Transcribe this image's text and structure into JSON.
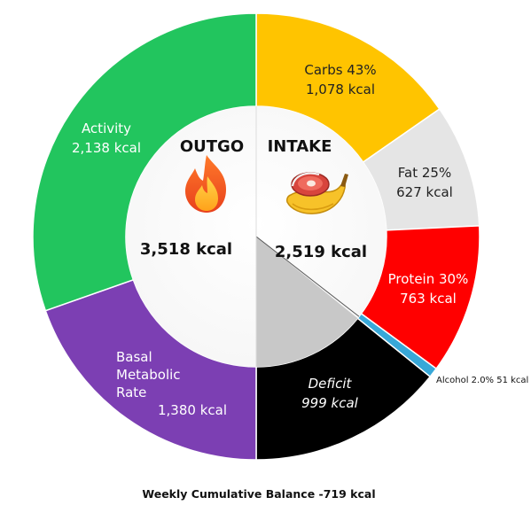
{
  "chart_data": {
    "type": "pie",
    "variant": "donut",
    "title": "",
    "footer": "Weekly Cumulative Balance -719 kcal",
    "left_half": {
      "heading": "OUTGO",
      "icon": "fire-icon",
      "total_label": "3,518 kcal",
      "total": 3518,
      "slices": [
        {
          "name": "Activity",
          "value": 2138,
          "value_label": "2,138 kcal",
          "color": "#22c55e"
        },
        {
          "name": "Basal Metabolic Rate",
          "name_lines": [
            "Basal",
            "Metabolic",
            "Rate"
          ],
          "value": 1380,
          "value_label": "1,380 kcal",
          "color": "#7c3fb3"
        }
      ]
    },
    "right_half": {
      "heading": "INTAKE",
      "icon": "meat-and-banana-icon",
      "total_label": "2,519 kcal",
      "total": 2519,
      "slices": [
        {
          "name": "Carbs 43%",
          "value": 1078,
          "value_label": "1,078 kcal",
          "color": "#ffc400"
        },
        {
          "name": "Fat 25%",
          "value": 627,
          "value_label": "627 kcal",
          "color": "#e5e5e5"
        },
        {
          "name": "Protein 30%",
          "value": 763,
          "value_label": "763 kcal",
          "color": "#ff0000"
        },
        {
          "name": "Alcohol 2.0% 51 kcal",
          "value": 51,
          "value_label": "",
          "color": "#38a8d8"
        },
        {
          "name": "Deficit",
          "value": 999,
          "value_label": "999 kcal",
          "color": "#000000",
          "inner_color": "#c8c8c8"
        }
      ]
    }
  }
}
